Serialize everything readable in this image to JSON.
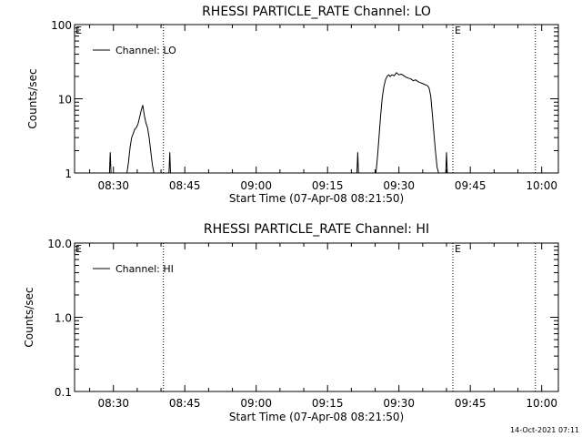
{
  "chart_data": [
    {
      "type": "line",
      "title": "RHESSI PARTICLE_RATE Channel: LO",
      "xlabel": "Start Time (07-Apr-08 08:21:50)",
      "ylabel": "Counts/sec",
      "yscale": "log",
      "ylim": [
        1,
        100
      ],
      "xlim": [
        "08:21:50",
        "10:03:30"
      ],
      "x_ticks": [
        "08:30",
        "08:45",
        "09:00",
        "09:15",
        "09:30",
        "09:45",
        "10:00"
      ],
      "y_ticks": [
        "1",
        "10",
        "100"
      ],
      "grid": false,
      "legend_position": "top-left",
      "series": [
        {
          "name": "Channel: LO",
          "color": "#000000",
          "x": [
            "08:29:00",
            "08:29:10",
            "08:29:20",
            "08:29:30",
            "08:29:40",
            "08:32:50",
            "08:33:10",
            "08:33:30",
            "08:33:50",
            "08:34:10",
            "08:34:30",
            "08:34:50",
            "08:35:10",
            "08:35:30",
            "08:35:50",
            "08:36:10",
            "08:36:30",
            "08:36:50",
            "08:37:10",
            "08:37:30",
            "08:37:50",
            "08:38:10",
            "08:38:30",
            "08:41:30",
            "08:41:40",
            "08:41:50",
            "08:42:00",
            "08:42:10",
            "09:21:00",
            "09:21:10",
            "09:21:20",
            "09:21:30",
            "09:21:40",
            "09:25:10",
            "09:25:30",
            "09:25:50",
            "09:26:10",
            "09:26:30",
            "09:26:50",
            "09:27:10",
            "09:27:30",
            "09:27:50",
            "09:28:10",
            "09:28:30",
            "09:29:00",
            "09:29:30",
            "09:30:00",
            "09:30:30",
            "09:31:00",
            "09:31:30",
            "09:32:00",
            "09:32:30",
            "09:33:00",
            "09:33:30",
            "09:34:00",
            "09:34:30",
            "09:35:00",
            "09:35:30",
            "09:36:00",
            "09:36:20",
            "09:36:40",
            "09:37:00",
            "09:37:20",
            "09:37:40",
            "09:38:00",
            "09:38:20",
            "09:39:40",
            "09:39:50",
            "09:40:00",
            "09:40:10",
            "09:40:20"
          ],
          "y": [
            1,
            1,
            1.9,
            1,
            1,
            1,
            1.4,
            2.2,
            3,
            3.4,
            3.9,
            4.1,
            4.6,
            5.6,
            7,
            8.2,
            6,
            4.7,
            4.1,
            3,
            2,
            1.3,
            1,
            1,
            1,
            1.9,
            1,
            1,
            1,
            1,
            1.9,
            1,
            1,
            1,
            1.7,
            3.2,
            6,
            10.5,
            14.5,
            18,
            20,
            21,
            20,
            21,
            20.5,
            22.5,
            21,
            21.5,
            20.5,
            19.5,
            19,
            18.5,
            17.5,
            18,
            17,
            16.5,
            16,
            15.5,
            15,
            14,
            11,
            6.5,
            3.5,
            2,
            1.2,
            1,
            1,
            1,
            1.9,
            1,
            1
          ]
        }
      ],
      "vlines": [
        {
          "x": "08:40:30",
          "label": ""
        },
        {
          "x": "09:41:20",
          "label": "E"
        },
        {
          "x": "09:58:40",
          "label": ""
        }
      ],
      "corner_label": "E"
    },
    {
      "type": "line",
      "title": "RHESSI PARTICLE_RATE Channel: HI",
      "xlabel": "Start Time (07-Apr-08 08:21:50)",
      "ylabel": "Counts/sec",
      "yscale": "log",
      "ylim": [
        0.1,
        10
      ],
      "xlim": [
        "08:21:50",
        "10:03:30"
      ],
      "x_ticks": [
        "08:30",
        "08:45",
        "09:00",
        "09:15",
        "09:30",
        "09:45",
        "10:00"
      ],
      "y_ticks": [
        "0.1",
        "1.0",
        "10.0"
      ],
      "grid": false,
      "legend_position": "top-left",
      "series": [
        {
          "name": "Channel: HI",
          "color": "#000000",
          "x": [],
          "y": []
        }
      ],
      "vlines": [
        {
          "x": "08:40:30",
          "label": ""
        },
        {
          "x": "09:41:20",
          "label": "E"
        },
        {
          "x": "09:58:40",
          "label": ""
        }
      ],
      "corner_label": "E"
    }
  ],
  "footer": {
    "timestamp": "14-Oct-2021 07:11"
  }
}
